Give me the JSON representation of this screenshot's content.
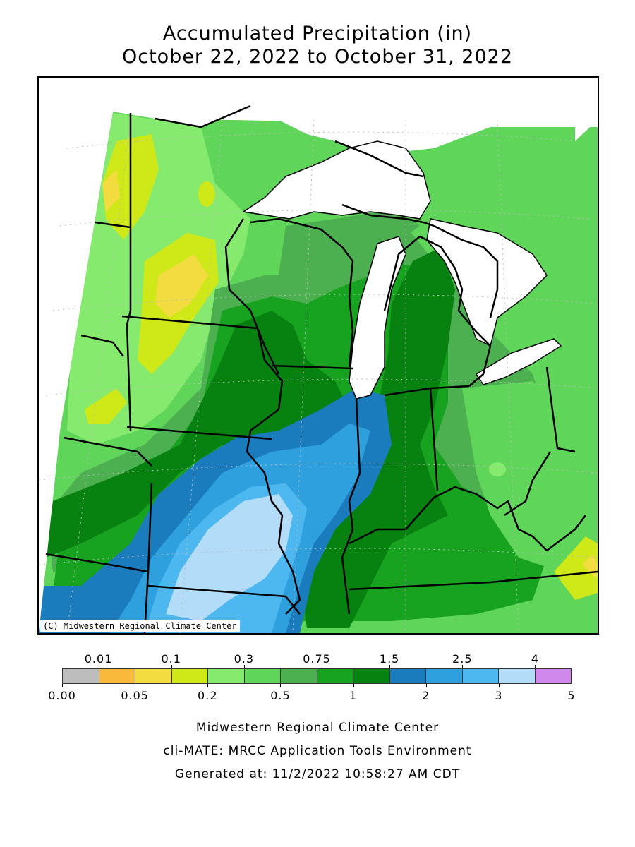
{
  "header": {
    "title_line1": "Accumulated Precipitation (in)",
    "title_line2": "October 22, 2022 to October 31, 2022"
  },
  "map": {
    "credit": "(C) Midwestern Regional Climate Center",
    "colors": {
      "water": "#ffffff",
      "c_0_05_0_1": "#f2dc3f",
      "c_0_1_0_2": "#cfe817",
      "c_0_2_0_3": "#86ea6f",
      "c_0_3_0_5": "#5fd65a",
      "c_0_5_0_75": "#4caf50",
      "c_0_75_1": "#17a21f",
      "c_1_1_5": "#078210",
      "c_1_5_2": "#1a7bbd",
      "c_2_2_5": "#2ea0de",
      "c_2_5_3": "#4cb8ef",
      "c_3_4": "#b2dcf8",
      "c_0_01_0_05": "#f9b93a"
    }
  },
  "legend": {
    "swatch_colors": [
      "#bdbdbd",
      "#f9b93a",
      "#f2dc3f",
      "#cfe817",
      "#86ea6f",
      "#5fd65a",
      "#4caf50",
      "#17a21f",
      "#078210",
      "#1a7bbd",
      "#2ea0de",
      "#4cb8ef",
      "#b2dcf8",
      "#d088ec"
    ],
    "top_labels": [
      "0.01",
      "0.1",
      "0.3",
      "0.75",
      "1.5",
      "2.5",
      "4"
    ],
    "bottom_labels": [
      "0.00",
      "0.05",
      "0.2",
      "0.5",
      "1",
      "2",
      "3",
      "5"
    ]
  },
  "footer": {
    "line1": "Midwestern Regional Climate Center",
    "line2": "cli-MATE: MRCC Application Tools Environment",
    "line3": "Generated at: 11/2/2022 10:58:27 AM CDT"
  }
}
